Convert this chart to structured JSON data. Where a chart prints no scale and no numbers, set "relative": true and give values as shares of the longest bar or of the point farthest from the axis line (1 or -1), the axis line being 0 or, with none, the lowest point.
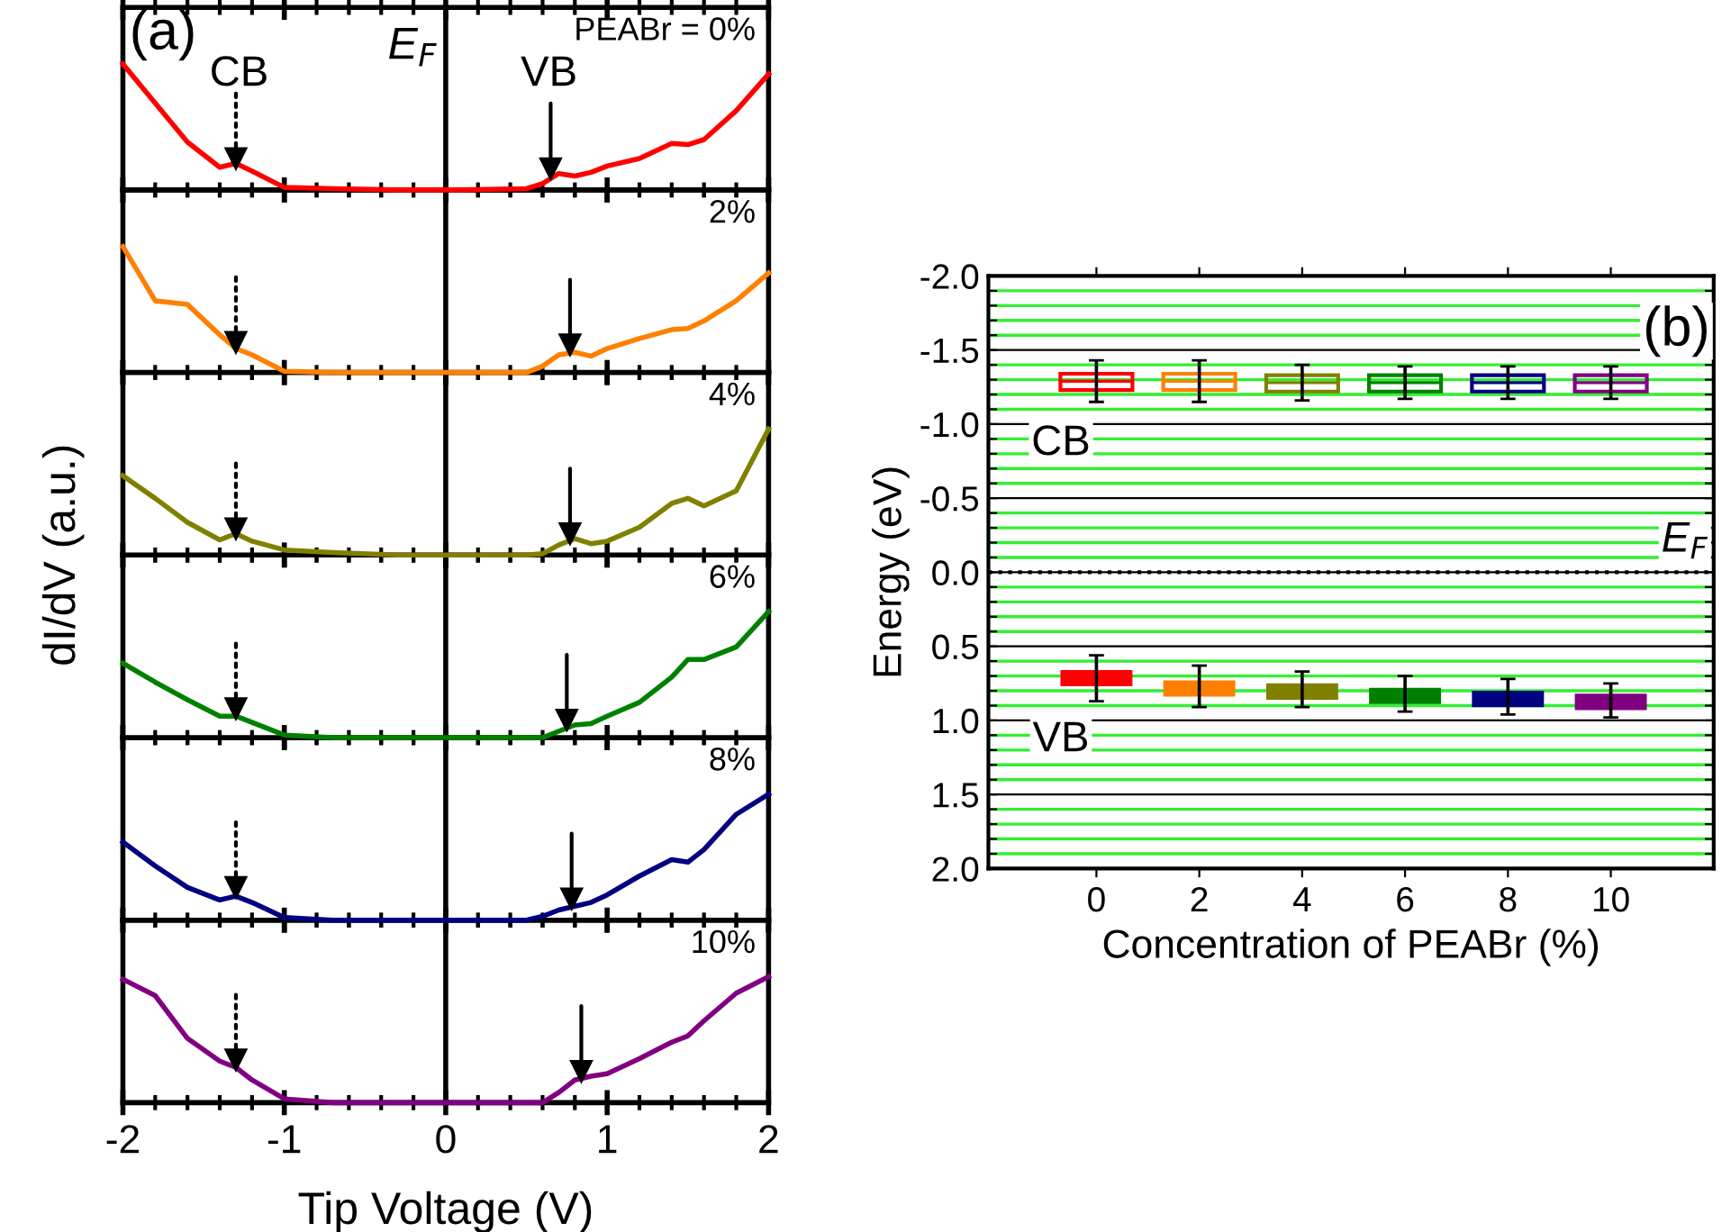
{
  "chart_data": [
    {
      "type": "line",
      "title": "PEABr = 0%",
      "relative": true,
      "ylabel": "dI/dV (a.u.)",
      "xlim": [
        -2,
        2
      ],
      "xticks": [
        -2,
        -1,
        0,
        1,
        2
      ],
      "tick_labels": false,
      "x": [
        -2,
        -1.8,
        -1.6,
        -1.4,
        -1.3,
        -1.2,
        -1.0,
        -0.7,
        -0.3,
        0.1,
        0.5,
        0.6,
        0.7,
        0.8,
        0.9,
        1.0,
        1.2,
        1.4,
        1.5,
        1.6,
        1.8,
        2.0
      ],
      "series": [
        {
          "color": "#ff0000",
          "values": [
            1.0,
            0.69,
            0.38,
            0.18,
            0.21,
            0.15,
            0.02,
            0.01,
            0,
            0,
            0.01,
            0.05,
            0.13,
            0.11,
            0.14,
            0.19,
            0.25,
            0.37,
            0.36,
            0.4,
            0.63,
            0.92
          ]
        },
        {
          "type": "scatter",
          "marker": "triangle",
          "line_style": "dotted",
          "color": "#000000",
          "x": [
            -1.3
          ],
          "values": [
            0.25
          ]
        },
        {
          "type": "scatter",
          "marker": "triangle",
          "line_style": "solid",
          "color": "#000000",
          "x": [
            0.65
          ],
          "values": [
            0.17
          ]
        }
      ],
      "ref_lines": [
        {
          "axis": "x",
          "value": 0,
          "label": "E$_{F}$",
          "color": "#000000"
        }
      ],
      "annotations": [
        "(a)",
        "CB",
        "VB"
      ]
    },
    {
      "type": "line",
      "title": "2%",
      "relative": true,
      "xlim": [
        -2,
        2
      ],
      "xticks": [
        -2,
        -1,
        0,
        1,
        2
      ],
      "tick_labels": false,
      "x": [
        -2,
        -1.8,
        -1.6,
        -1.4,
        -1.3,
        -1.2,
        -1.0,
        -0.7,
        -0.3,
        0.1,
        0.5,
        0.6,
        0.7,
        0.8,
        0.9,
        1.0,
        1.2,
        1.4,
        1.5,
        1.6,
        1.8,
        2.0
      ],
      "series": [
        {
          "color": "#ff8000",
          "values": [
            1.0,
            0.57,
            0.54,
            0.3,
            0.19,
            0.14,
            0.01,
            0,
            0,
            0,
            0,
            0.05,
            0.14,
            0.16,
            0.13,
            0.19,
            0.27,
            0.34,
            0.35,
            0.41,
            0.57,
            0.79
          ]
        },
        {
          "type": "scatter",
          "marker": "triangle",
          "line_style": "dotted",
          "color": "#000000",
          "x": [
            -1.3
          ],
          "values": [
            0.24
          ]
        },
        {
          "type": "scatter",
          "marker": "triangle",
          "line_style": "solid",
          "color": "#000000",
          "x": [
            0.77
          ],
          "values": [
            0.22
          ]
        }
      ],
      "ref_lines": [
        {
          "axis": "x",
          "value": 0,
          "color": "#000000"
        }
      ]
    },
    {
      "type": "line",
      "title": "4%",
      "relative": true,
      "xlim": [
        -2,
        2
      ],
      "xticks": [
        -2,
        -1,
        0,
        1,
        2
      ],
      "tick_labels": false,
      "x": [
        -2,
        -1.8,
        -1.6,
        -1.4,
        -1.3,
        -1.2,
        -1.0,
        -0.7,
        -0.3,
        0.1,
        0.5,
        0.6,
        0.7,
        0.8,
        0.9,
        1.0,
        1.2,
        1.4,
        1.5,
        1.6,
        1.8,
        2.0
      ],
      "series": [
        {
          "color": "#808000",
          "values": [
            0.63,
            0.45,
            0.26,
            0.12,
            0.17,
            0.11,
            0.04,
            0.02,
            0,
            0,
            0,
            0.01,
            0.08,
            0.13,
            0.09,
            0.11,
            0.22,
            0.41,
            0.45,
            0.39,
            0.51,
            1.0
          ]
        },
        {
          "type": "scatter",
          "marker": "triangle",
          "line_style": "dotted",
          "color": "#000000",
          "x": [
            -1.3
          ],
          "values": [
            0.21
          ]
        },
        {
          "type": "scatter",
          "marker": "triangle",
          "line_style": "solid",
          "color": "#000000",
          "x": [
            0.77
          ],
          "values": [
            0.17
          ]
        }
      ],
      "ref_lines": [
        {
          "axis": "x",
          "value": 0,
          "color": "#000000"
        }
      ]
    },
    {
      "type": "line",
      "title": "6%",
      "relative": true,
      "xlim": [
        -2,
        2
      ],
      "xticks": [
        -2,
        -1,
        0,
        1,
        2
      ],
      "tick_labels": false,
      "x": [
        -2,
        -1.8,
        -1.6,
        -1.4,
        -1.3,
        -1.2,
        -1.0,
        -0.7,
        -0.3,
        0.1,
        0.5,
        0.6,
        0.7,
        0.8,
        0.9,
        1.0,
        1.2,
        1.4,
        1.5,
        1.6,
        1.8,
        2.0
      ],
      "series": [
        {
          "color": "#008000",
          "values": [
            0.59,
            0.44,
            0.3,
            0.17,
            0.17,
            0.12,
            0.02,
            0,
            0,
            0,
            0,
            0,
            0.05,
            0.1,
            0.11,
            0.17,
            0.28,
            0.48,
            0.62,
            0.62,
            0.72,
            1.0
          ]
        },
        {
          "type": "scatter",
          "marker": "triangle",
          "line_style": "dotted",
          "color": "#000000",
          "x": [
            -1.3
          ],
          "values": [
            0.23
          ]
        },
        {
          "type": "scatter",
          "marker": "triangle",
          "line_style": "solid",
          "color": "#000000",
          "x": [
            0.75
          ],
          "values": [
            0.14
          ]
        }
      ],
      "ref_lines": [
        {
          "axis": "x",
          "value": 0,
          "color": "#000000"
        }
      ]
    },
    {
      "type": "line",
      "title": "8%",
      "relative": true,
      "xlim": [
        -2,
        2
      ],
      "xticks": [
        -2,
        -1,
        0,
        1,
        2
      ],
      "tick_labels": false,
      "x": [
        -2,
        -1.8,
        -1.6,
        -1.4,
        -1.3,
        -1.2,
        -1.0,
        -0.7,
        -0.3,
        0.1,
        0.5,
        0.6,
        0.7,
        0.8,
        0.9,
        1.0,
        1.2,
        1.4,
        1.5,
        1.6,
        1.8,
        2.0
      ],
      "series": [
        {
          "color": "#000080",
          "values": [
            0.62,
            0.43,
            0.26,
            0.16,
            0.19,
            0.14,
            0.02,
            0,
            0,
            0,
            0,
            0.03,
            0.08,
            0.11,
            0.14,
            0.2,
            0.35,
            0.48,
            0.46,
            0.56,
            0.84,
            1.0
          ]
        },
        {
          "type": "scatter",
          "marker": "triangle",
          "line_style": "dotted",
          "color": "#000000",
          "x": [
            -1.3
          ],
          "values": [
            0.26
          ]
        },
        {
          "type": "scatter",
          "marker": "triangle",
          "line_style": "solid",
          "color": "#000000",
          "x": [
            0.78
          ],
          "values": [
            0.17
          ]
        }
      ],
      "ref_lines": [
        {
          "axis": "x",
          "value": 0,
          "color": "#000000"
        }
      ]
    },
    {
      "type": "line",
      "title": "10%",
      "relative": true,
      "xlabel": "Tip Voltage (V)",
      "xlim": [
        -2,
        2
      ],
      "xticks": [
        -2,
        -1,
        0,
        1,
        2
      ],
      "tick_labels": "x",
      "x": [
        -2,
        -1.8,
        -1.6,
        -1.4,
        -1.3,
        -1.2,
        -1.0,
        -0.7,
        -0.3,
        0.1,
        0.5,
        0.6,
        0.7,
        0.8,
        0.9,
        1.0,
        1.2,
        1.4,
        1.5,
        1.6,
        1.8,
        2.0
      ],
      "series": [
        {
          "color": "#800080",
          "values": [
            0.98,
            0.85,
            0.51,
            0.33,
            0.28,
            0.18,
            0.03,
            0,
            0,
            0,
            0,
            0,
            0.08,
            0.18,
            0.21,
            0.23,
            0.35,
            0.48,
            0.53,
            0.65,
            0.87,
            1.0
          ]
        },
        {
          "type": "scatter",
          "marker": "triangle",
          "line_style": "dotted",
          "color": "#000000",
          "x": [
            -1.3
          ],
          "values": [
            0.34
          ]
        },
        {
          "type": "scatter",
          "marker": "triangle",
          "line_style": "solid",
          "color": "#000000",
          "x": [
            0.84
          ],
          "values": [
            0.25
          ]
        }
      ],
      "ref_lines": [
        {
          "axis": "x",
          "value": 0,
          "color": "#000000"
        }
      ]
    },
    {
      "type": "bar",
      "xlabel": "Concentration of PEABr (%)",
      "ylabel": "Energy (eV)",
      "categories": [
        "0",
        "2",
        "4",
        "6",
        "8",
        "10"
      ],
      "ylim": [
        2.0,
        -2.0
      ],
      "yticks": [
        {
          "value": -2.0,
          "label": "-2.0"
        },
        {
          "value": -1.9,
          "label": null
        },
        {
          "value": -1.8,
          "label": null
        },
        {
          "value": -1.7,
          "label": null
        },
        {
          "value": -1.6,
          "label": null
        },
        {
          "value": -1.5,
          "label": "-1.5"
        },
        {
          "value": -1.4,
          "label": null
        },
        {
          "value": -1.3,
          "label": null
        },
        {
          "value": -1.2,
          "label": null
        },
        {
          "value": -1.1,
          "label": null
        },
        {
          "value": -1.0,
          "label": "-1.0"
        },
        {
          "value": -0.9,
          "label": null
        },
        {
          "value": -0.8,
          "label": null
        },
        {
          "value": -0.7,
          "label": null
        },
        {
          "value": -0.6,
          "label": null
        },
        {
          "value": -0.5,
          "label": "-0.5"
        },
        {
          "value": -0.4,
          "label": null
        },
        {
          "value": -0.3,
          "label": null
        },
        {
          "value": -0.2,
          "label": null
        },
        {
          "value": -0.1,
          "label": null
        },
        {
          "value": 0,
          "label": "0.0"
        },
        {
          "value": 0.1,
          "label": null
        },
        {
          "value": 0.2,
          "label": null
        },
        {
          "value": 0.3,
          "label": null
        },
        {
          "value": 0.4,
          "label": null
        },
        {
          "value": 0.5,
          "label": "0.5"
        },
        {
          "value": 0.6,
          "label": null
        },
        {
          "value": 0.7,
          "label": null
        },
        {
          "value": 0.8,
          "label": null
        },
        {
          "value": 0.9,
          "label": null
        },
        {
          "value": 1.0,
          "label": "1.0"
        },
        {
          "value": 1.1,
          "label": null
        },
        {
          "value": 1.2,
          "label": null
        },
        {
          "value": 1.3,
          "label": null
        },
        {
          "value": 1.4,
          "label": null
        },
        {
          "value": 1.5,
          "label": "1.5"
        },
        {
          "value": 1.6,
          "label": null
        },
        {
          "value": 1.7,
          "label": null
        },
        {
          "value": 1.8,
          "label": null
        },
        {
          "value": 1.9,
          "label": null
        },
        {
          "value": 2.0,
          "label": "2.0"
        }
      ],
      "grid": "y",
      "series": [
        {
          "type": "box",
          "colors": [
            "#ff0000",
            "#ff8000",
            "#808000",
            "#008000",
            "#000080",
            "#800080"
          ],
          "boxes": [
            {
              "low": -1.43,
              "q1": -1.34,
              "median": -1.29,
              "q3": -1.23,
              "high": -1.15
            },
            {
              "low": -1.43,
              "q1": -1.34,
              "median": -1.29,
              "q3": -1.23,
              "high": -1.15
            },
            {
              "low": -1.4,
              "q1": -1.33,
              "median": -1.28,
              "q3": -1.22,
              "high": -1.16
            },
            {
              "low": -1.39,
              "q1": -1.33,
              "median": -1.28,
              "q3": -1.22,
              "high": -1.17
            },
            {
              "low": -1.39,
              "q1": -1.33,
              "median": -1.28,
              "q3": -1.22,
              "high": -1.17
            },
            {
              "low": -1.39,
              "q1": -1.33,
              "median": -1.28,
              "q3": -1.22,
              "high": -1.17
            }
          ]
        },
        {
          "type": "bar",
          "colors": [
            "#ff0000",
            "#ff8000",
            "#808000",
            "#008000",
            "#000080",
            "#800080"
          ],
          "base": [
            0.66,
            0.73,
            0.75,
            0.78,
            0.8,
            0.82
          ],
          "values": [
            0.11,
            0.11,
            0.11,
            0.11,
            0.11,
            0.11
          ],
          "errors": [
            [
              0.56,
              0.87
            ],
            [
              0.63,
              0.91
            ],
            [
              0.67,
              0.91
            ],
            [
              0.7,
              0.94
            ],
            [
              0.72,
              0.96
            ],
            [
              0.75,
              0.98
            ]
          ]
        }
      ],
      "ref_lines": [
        {
          "axis": "y",
          "value": 0,
          "label": "E$_{F}$",
          "color": "#000000",
          "line_style": "dotted"
        }
      ],
      "annotations": [
        "(b)",
        "CB",
        "VB"
      ]
    }
  ]
}
